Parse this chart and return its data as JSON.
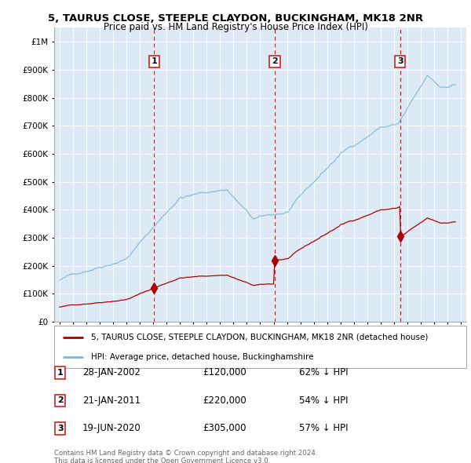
{
  "title": "5, TAURUS CLOSE, STEEPLE CLAYDON, BUCKINGHAM, MK18 2NR",
  "subtitle": "Price paid vs. HM Land Registry's House Price Index (HPI)",
  "legend_line1": "5, TAURUS CLOSE, STEEPLE CLAYDON, BUCKINGHAM, MK18 2NR (detached house)",
  "legend_line2": "HPI: Average price, detached house, Buckinghamshire",
  "footer1": "Contains HM Land Registry data © Crown copyright and database right 2024.",
  "footer2": "This data is licensed under the Open Government Licence v3.0.",
  "sales": [
    {
      "label": "1",
      "date": "28-JAN-2002",
      "price": 120000,
      "pct": "62% ↓ HPI",
      "year": 2002.08
    },
    {
      "label": "2",
      "date": "21-JAN-2011",
      "price": 220000,
      "pct": "54% ↓ HPI",
      "year": 2011.08
    },
    {
      "label": "3",
      "date": "19-JUN-2020",
      "price": 305000,
      "pct": "57% ↓ HPI",
      "year": 2020.46
    }
  ],
  "hpi_color": "#7ab8d9",
  "price_color": "#aa0000",
  "dashed_color": "#cc2222",
  "bg_color": "#ddeaf6",
  "ylim_min": 0,
  "ylim_max": 1050000,
  "xlim_min": 1994.6,
  "xlim_max": 2025.4,
  "yticks": [
    0,
    100000,
    200000,
    300000,
    400000,
    500000,
    600000,
    700000,
    800000,
    900000,
    1000000
  ],
  "ytick_labels": [
    "£0",
    "£100K",
    "£200K",
    "£300K",
    "£400K",
    "£500K",
    "£600K",
    "£700K",
    "£800K",
    "£900K",
    "£1M"
  ]
}
